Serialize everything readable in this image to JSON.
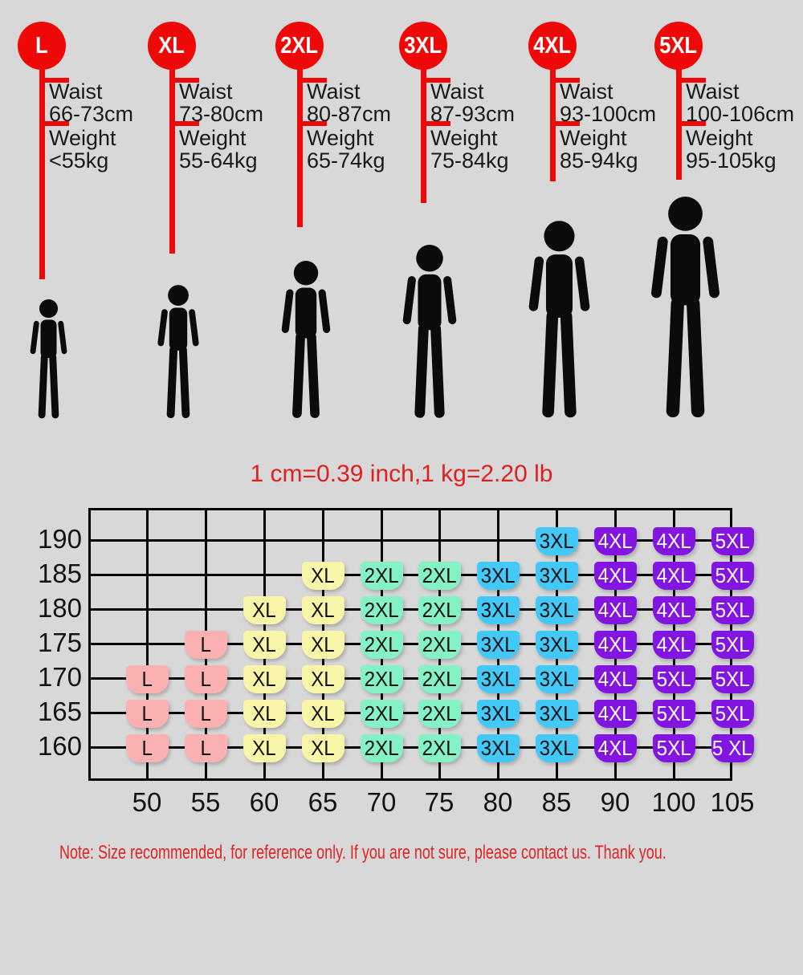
{
  "header": {
    "columns": [
      {
        "size": "L",
        "waist_label": "Waist",
        "waist_range": "66-73cm",
        "weight_label": "Weight",
        "weight_range": "<55kg"
      },
      {
        "size": "XL",
        "waist_label": "Waist",
        "waist_range": "73-80cm",
        "weight_label": "Weight",
        "weight_range": "55-64kg"
      },
      {
        "size": "2XL",
        "waist_label": "Waist",
        "waist_range": "80-87cm",
        "weight_label": "Weight",
        "weight_range": "65-74kg"
      },
      {
        "size": "3XL",
        "waist_label": "Waist",
        "waist_range": "87-93cm",
        "weight_label": "Weight",
        "weight_range": "75-84kg"
      },
      {
        "size": "4XL",
        "waist_label": "Waist",
        "waist_range": "93-100cm",
        "weight_label": "Weight",
        "weight_range": "85-94kg"
      },
      {
        "size": "5XL",
        "waist_label": "Waist",
        "waist_range": "100-106cm",
        "weight_label": "Weight",
        "weight_range": "95-105kg"
      }
    ]
  },
  "conversion_note": "1 cm=0.39 inch,1 kg=2.20 lb",
  "footer_note": "Note: Size recommended, for reference only. If you are not sure, please contact us. Thank you.",
  "chart_data": {
    "type": "heatmap",
    "x": [
      50,
      55,
      60,
      65,
      70,
      75,
      80,
      85,
      90,
      100,
      105
    ],
    "y": [
      190,
      185,
      180,
      175,
      170,
      165,
      160
    ],
    "annotations": [
      "1 cm=0.39 inch,1 kg=2.20 lb"
    ],
    "legend_position": "none",
    "grid": true,
    "cells": [
      [
        "",
        "",
        "",
        "",
        "",
        "",
        "",
        "3XL",
        "4XL",
        "4XL",
        "5XL"
      ],
      [
        "",
        "",
        "",
        "XL",
        "2XL",
        "2XL",
        "3XL",
        "3XL",
        "4XL",
        "4XL",
        "5XL"
      ],
      [
        "",
        "",
        "XL",
        "XL",
        "2XL",
        "2XL",
        "3XL",
        "3XL",
        "4XL",
        "4XL",
        "5XL"
      ],
      [
        "",
        "L",
        "XL",
        "XL",
        "2XL",
        "2XL",
        "3XL",
        "3XL",
        "4XL",
        "4XL",
        "5XL"
      ],
      [
        "L",
        "L",
        "XL",
        "XL",
        "2XL",
        "2XL",
        "3XL",
        "3XL",
        "4XL",
        "5XL",
        "5XL"
      ],
      [
        "L",
        "L",
        "XL",
        "XL",
        "2XL",
        "2XL",
        "3XL",
        "3XL",
        "4XL",
        "5XL",
        "5XL"
      ],
      [
        "L",
        "L",
        "XL",
        "XL",
        "2XL",
        "2XL",
        "3XL",
        "3XL",
        "4XL",
        "5XL",
        "5 XL"
      ]
    ]
  },
  "colors": {
    "background": "#d8d8d8",
    "accent_red": "#ee0808",
    "text_red": "#e02020",
    "figure_black": "#0b0b0b",
    "grid_line": "#000000",
    "badges": {
      "L": {
        "bg": "#fbb1b1",
        "text": "#111111"
      },
      "XL": {
        "bg": "#f8f4a8",
        "text": "#111111"
      },
      "2XL": {
        "bg": "#85f2c6",
        "text": "#111111"
      },
      "3XL": {
        "bg": "#42c9f7",
        "text": "#111111"
      },
      "4XL": {
        "bg": "#8315e3",
        "text": "#ffffff"
      },
      "5XL": {
        "bg": "#8315e3",
        "text": "#ffffff"
      }
    }
  }
}
